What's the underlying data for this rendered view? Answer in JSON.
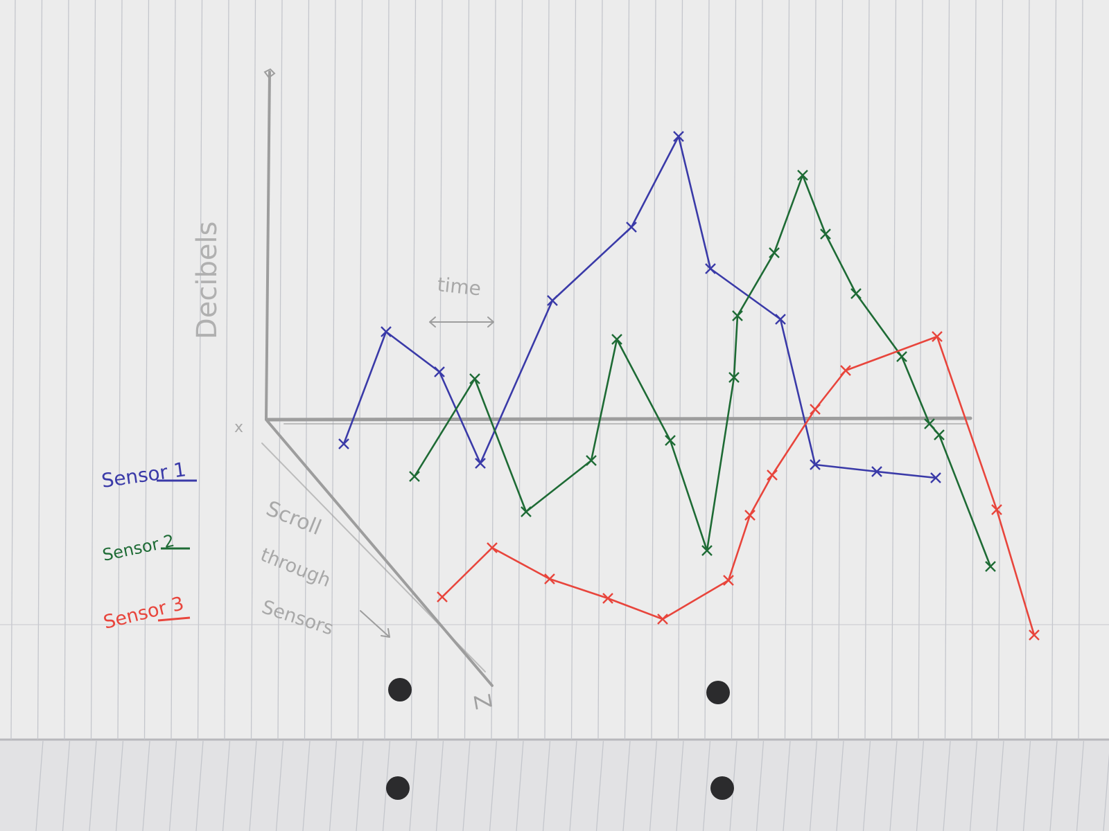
{
  "chart_data": {
    "type": "line",
    "medium": "hand-drawn sketch on lined notebook paper",
    "xlabel": "time",
    "ylabel": "Decibels",
    "zlabel": "Z",
    "y_origin_label": "x",
    "z_note": [
      "Scroll",
      "through",
      "Sensors"
    ],
    "grid": false,
    "legend_placement": "left",
    "series": [
      {
        "name": "Sensor 1",
        "color": "#3a3aa8",
        "marker": "x",
        "points": [
          [
            496,
            641
          ],
          [
            557,
            479
          ],
          [
            634,
            537
          ],
          [
            693,
            669
          ],
          [
            797,
            434
          ],
          [
            911,
            328
          ],
          [
            979,
            197
          ],
          [
            1025,
            388
          ],
          [
            1126,
            461
          ],
          [
            1176,
            671
          ],
          [
            1265,
            681
          ],
          [
            1350,
            690
          ]
        ]
      },
      {
        "name": "Sensor 2",
        "color": "#1e6b35",
        "marker": "x",
        "points": [
          [
            598,
            688
          ],
          [
            685,
            547
          ],
          [
            759,
            739
          ],
          [
            853,
            665
          ],
          [
            890,
            490
          ],
          [
            967,
            636
          ],
          [
            1020,
            795
          ],
          [
            1059,
            545
          ],
          [
            1064,
            456
          ],
          [
            1117,
            365
          ],
          [
            1158,
            253
          ],
          [
            1191,
            338
          ],
          [
            1235,
            424
          ],
          [
            1301,
            515
          ],
          [
            1341,
            612
          ],
          [
            1355,
            628
          ],
          [
            1429,
            818
          ]
        ]
      },
      {
        "name": "Sensor 3",
        "color": "#e8453c",
        "marker": "x",
        "points": [
          [
            638,
            862
          ],
          [
            710,
            791
          ],
          [
            793,
            836
          ],
          [
            877,
            864
          ],
          [
            956,
            894
          ],
          [
            1051,
            838
          ],
          [
            1082,
            744
          ],
          [
            1114,
            686
          ],
          [
            1176,
            591
          ],
          [
            1220,
            535
          ],
          [
            1352,
            486
          ],
          [
            1438,
            736
          ],
          [
            1492,
            917
          ]
        ]
      }
    ]
  }
}
